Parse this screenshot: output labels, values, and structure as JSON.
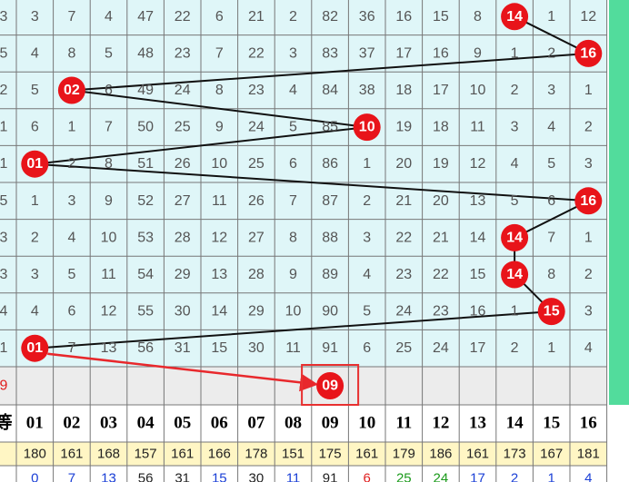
{
  "rows": [
    {
      "lead": "3",
      "cells": [
        "3",
        "7",
        "4",
        "47",
        "22",
        "6",
        "21",
        "2",
        "82",
        "36",
        "16",
        "15",
        "8",
        {
          "text": "14",
          "ball": true
        },
        "1",
        "12"
      ]
    },
    {
      "lead": "5",
      "cells": [
        "4",
        "8",
        "5",
        "48",
        "23",
        "7",
        "22",
        "3",
        "83",
        "37",
        "17",
        "16",
        "9",
        "1",
        "2",
        {
          "text": "16",
          "ball": true
        }
      ]
    },
    {
      "lead": "2",
      "cells": [
        "5",
        {
          "text": "02",
          "ball": true
        },
        "6",
        "49",
        "24",
        "8",
        "23",
        "4",
        "84",
        "38",
        "18",
        "17",
        "10",
        "2",
        "3",
        "1"
      ]
    },
    {
      "lead": "1",
      "cells": [
        "6",
        "1",
        "7",
        "50",
        "25",
        "9",
        "24",
        "5",
        "85",
        {
          "text": "10",
          "ball": true
        },
        "19",
        "18",
        "11",
        "3",
        "4",
        "2"
      ]
    },
    {
      "lead": "1",
      "cells": [
        {
          "text": "01",
          "ball": true
        },
        "2",
        "8",
        "51",
        "26",
        "10",
        "25",
        "6",
        "86",
        "1",
        "20",
        "19",
        "12",
        "4",
        "5",
        "3"
      ]
    },
    {
      "lead": "5",
      "cells": [
        "1",
        "3",
        "9",
        "52",
        "27",
        "11",
        "26",
        "7",
        "87",
        "2",
        "21",
        "20",
        "13",
        "5",
        "6",
        {
          "text": "16",
          "ball": true
        }
      ]
    },
    {
      "lead": "3",
      "cells": [
        "2",
        "4",
        "10",
        "53",
        "28",
        "12",
        "27",
        "8",
        "88",
        "3",
        "22",
        "21",
        "14",
        {
          "text": "14",
          "ball": true
        },
        "7",
        "1"
      ]
    },
    {
      "lead": "3",
      "cells": [
        "3",
        "5",
        "11",
        "54",
        "29",
        "13",
        "28",
        "9",
        "89",
        "4",
        "23",
        "22",
        "15",
        {
          "text": "14",
          "ball": true
        },
        "8",
        "2"
      ]
    },
    {
      "lead": "4",
      "cells": [
        "4",
        "6",
        "12",
        "55",
        "30",
        "14",
        "29",
        "10",
        "90",
        "5",
        "24",
        "23",
        "16",
        "1",
        {
          "text": "15",
          "ball": true
        },
        "3"
      ]
    },
    {
      "lead": "1",
      "cells": [
        {
          "text": "01",
          "ball": true
        },
        "7",
        "13",
        "56",
        "31",
        "15",
        "30",
        "11",
        "91",
        "6",
        "25",
        "24",
        "17",
        "2",
        "1",
        "4"
      ]
    }
  ],
  "prediction": {
    "lead": "9",
    "column": 8,
    "text": "09"
  },
  "header": {
    "lead": "等",
    "numbers": [
      "01",
      "02",
      "03",
      "04",
      "05",
      "06",
      "07",
      "08",
      "09",
      "10",
      "11",
      "12",
      "13",
      "14",
      "15",
      "16"
    ]
  },
  "totals": [
    "180",
    "161",
    "168",
    "157",
    "161",
    "166",
    "178",
    "151",
    "175",
    "161",
    "179",
    "186",
    "161",
    "173",
    "167",
    "181"
  ],
  "last_row": [
    {
      "text": "0",
      "color": "#1a3fd6"
    },
    {
      "text": "7",
      "color": "#1a3fd6"
    },
    {
      "text": "13",
      "color": "#1a3fd6"
    },
    {
      "text": "56",
      "color": "#222"
    },
    {
      "text": "31",
      "color": "#222"
    },
    {
      "text": "15",
      "color": "#1a3fd6"
    },
    {
      "text": "30",
      "color": "#222"
    },
    {
      "text": "11",
      "color": "#1a3fd6"
    },
    {
      "text": "91",
      "color": "#222"
    },
    {
      "text": "6",
      "color": "#e02020"
    },
    {
      "text": "25",
      "color": "#1a9a1a"
    },
    {
      "text": "24",
      "color": "#1a9a1a"
    },
    {
      "text": "17",
      "color": "#1a3fd6"
    },
    {
      "text": "2",
      "color": "#1a3fd6"
    },
    {
      "text": "1",
      "color": "#1a3fd6"
    },
    {
      "text": "4",
      "color": "#1a3fd6"
    }
  ]
}
